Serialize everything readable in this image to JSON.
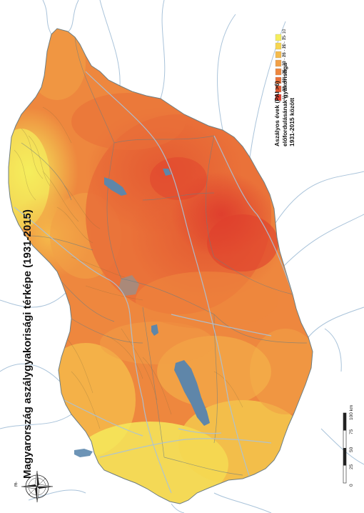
{
  "map": {
    "title": "Magyarország aszálygyakorisági térképe (1931-2015)",
    "colors": {
      "background": "#ffffff",
      "river": "#a9c3da",
      "lake": "#5f86a9",
      "border": "#6e7d80"
    }
  },
  "legend": {
    "title_lines": [
      "Aszályos évek (PAI >6)",
      "előfordulásának gyakorisága",
      "1931-2015 között"
    ],
    "classes": [
      {
        "label": "41 - 42",
        "color": "#df3f2d"
      },
      {
        "label": "36 - 40",
        "color": "#e45a32"
      },
      {
        "label": "31 - 35",
        "color": "#e96f38"
      },
      {
        "label": "26 - 30",
        "color": "#ee873e"
      },
      {
        "label": "21 - 25",
        "color": "#f2a046"
      },
      {
        "label": "16 - 20",
        "color": "#f5bb4b"
      },
      {
        "label": "11 - 15",
        "color": "#f7d650"
      },
      {
        "label": "7 - 10",
        "color": "#f5ee5c"
      }
    ]
  },
  "scale_bar": {
    "ticks": [
      "0",
      "25",
      "50",
      "75",
      "100 km"
    ]
  },
  "compass": {
    "icon": "compass-rose-icon",
    "label": "É"
  }
}
